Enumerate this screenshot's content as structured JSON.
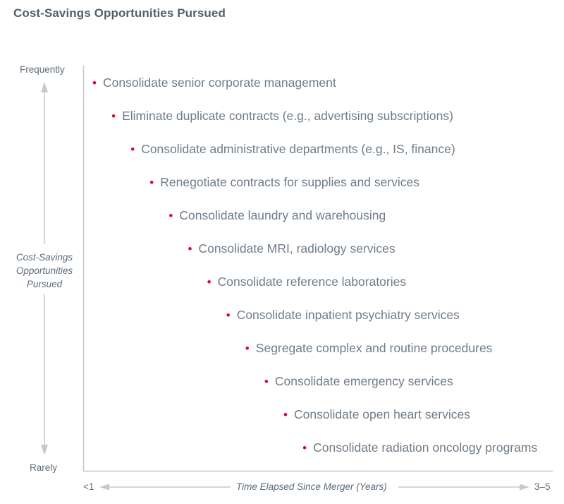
{
  "title": "Cost-Savings Opportunities Pursued",
  "y_axis": {
    "top_label": "Frequently",
    "bottom_label": "Rarely",
    "title_lines": [
      "Cost-Savings",
      "Opportunities",
      "Pursued"
    ]
  },
  "x_axis": {
    "left_label": "<1",
    "right_label": "3–5",
    "title": "Time Elapsed Since Merger (Years)"
  },
  "colors": {
    "bullet": "#e4002b",
    "text": "#6f7c88",
    "title": "#4f6170",
    "axis": "#c8c8c8"
  },
  "items": [
    {
      "label": "Consolidate senior corporate management",
      "rank": 1
    },
    {
      "label": "Eliminate duplicate contracts (e.g., advertising subscriptions)",
      "rank": 2
    },
    {
      "label": "Consolidate administrative departments (e.g., IS, finance)",
      "rank": 3
    },
    {
      "label": "Renegotiate contracts for supplies and services",
      "rank": 4
    },
    {
      "label": "Consolidate laundry and warehousing",
      "rank": 5
    },
    {
      "label": "Consolidate MRI, radiology services",
      "rank": 6
    },
    {
      "label": "Consolidate reference laboratories",
      "rank": 7
    },
    {
      "label": "Consolidate inpatient psychiatry services",
      "rank": 8
    },
    {
      "label": "Segregate complex and routine procedures",
      "rank": 9
    },
    {
      "label": "Consolidate emergency services",
      "rank": 10
    },
    {
      "label": "Consolidate open heart services",
      "rank": 11
    },
    {
      "label": "Consolidate radiation oncology programs",
      "rank": 12
    }
  ]
}
